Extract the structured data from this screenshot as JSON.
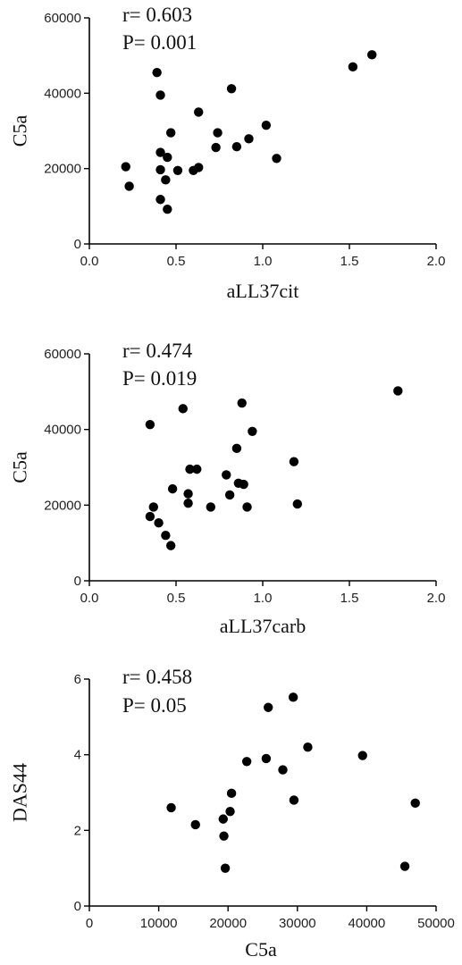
{
  "chart_data": [
    {
      "type": "scatter",
      "xlabel": "aLL37cit",
      "ylabel": "C5a",
      "xlim": [
        0,
        2
      ],
      "ylim": [
        0,
        60000
      ],
      "xticks": [
        "0.0",
        "0.5",
        "1.0",
        "1.5",
        "2.0"
      ],
      "yticks": [
        "0",
        "20000",
        "40000",
        "60000"
      ],
      "annotations": [
        "r= 0.603",
        "P= 0.001"
      ],
      "grid": false,
      "points": [
        {
          "x": 0.21,
          "y": 20500
        },
        {
          "x": 0.23,
          "y": 15300
        },
        {
          "x": 0.39,
          "y": 45500
        },
        {
          "x": 0.41,
          "y": 39500
        },
        {
          "x": 0.41,
          "y": 24300
        },
        {
          "x": 0.41,
          "y": 19700
        },
        {
          "x": 0.41,
          "y": 11800
        },
        {
          "x": 0.44,
          "y": 17000
        },
        {
          "x": 0.45,
          "y": 23000
        },
        {
          "x": 0.45,
          "y": 9200
        },
        {
          "x": 0.47,
          "y": 29500
        },
        {
          "x": 0.51,
          "y": 19500
        },
        {
          "x": 0.6,
          "y": 19500
        },
        {
          "x": 0.63,
          "y": 20300
        },
        {
          "x": 0.63,
          "y": 35000
        },
        {
          "x": 0.73,
          "y": 25600
        },
        {
          "x": 0.74,
          "y": 29500
        },
        {
          "x": 0.82,
          "y": 41200
        },
        {
          "x": 0.85,
          "y": 25800
        },
        {
          "x": 0.92,
          "y": 27900
        },
        {
          "x": 1.02,
          "y": 31500
        },
        {
          "x": 1.08,
          "y": 22700
        },
        {
          "x": 1.52,
          "y": 47000
        },
        {
          "x": 1.63,
          "y": 50200
        }
      ]
    },
    {
      "type": "scatter",
      "xlabel": "aLL37carb",
      "ylabel": "C5a",
      "xlim": [
        0,
        2
      ],
      "ylim": [
        0,
        60000
      ],
      "xticks": [
        "0.0",
        "0.5",
        "1.0",
        "1.5",
        "2.0"
      ],
      "yticks": [
        "0",
        "20000",
        "40000",
        "60000"
      ],
      "annotations": [
        "r= 0.474",
        "P= 0.019"
      ],
      "grid": false,
      "points": [
        {
          "x": 0.35,
          "y": 41300
        },
        {
          "x": 0.35,
          "y": 17000
        },
        {
          "x": 0.37,
          "y": 19500
        },
        {
          "x": 0.4,
          "y": 15300
        },
        {
          "x": 0.44,
          "y": 12000
        },
        {
          "x": 0.47,
          "y": 9300
        },
        {
          "x": 0.48,
          "y": 24300
        },
        {
          "x": 0.54,
          "y": 45500
        },
        {
          "x": 0.57,
          "y": 23000
        },
        {
          "x": 0.57,
          "y": 20500
        },
        {
          "x": 0.58,
          "y": 29500
        },
        {
          "x": 0.62,
          "y": 29500
        },
        {
          "x": 0.7,
          "y": 19500
        },
        {
          "x": 0.79,
          "y": 28000
        },
        {
          "x": 0.81,
          "y": 22700
        },
        {
          "x": 0.85,
          "y": 35000
        },
        {
          "x": 0.86,
          "y": 25800
        },
        {
          "x": 0.88,
          "y": 47000
        },
        {
          "x": 0.89,
          "y": 25500
        },
        {
          "x": 0.91,
          "y": 19500
        },
        {
          "x": 0.94,
          "y": 39500
        },
        {
          "x": 1.18,
          "y": 31500
        },
        {
          "x": 1.2,
          "y": 20300
        },
        {
          "x": 1.78,
          "y": 50200
        }
      ]
    },
    {
      "type": "scatter",
      "xlabel": "C5a",
      "ylabel": "DAS44",
      "xlim": [
        0,
        50000
      ],
      "ylim": [
        0,
        6
      ],
      "xticks": [
        "0",
        "10000",
        "20000",
        "30000",
        "40000",
        "50000"
      ],
      "yticks": [
        "0",
        "2",
        "4",
        "6"
      ],
      "annotations": [
        "r= 0.458",
        "P= 0.05"
      ],
      "grid": false,
      "points": [
        {
          "x": 11800,
          "y": 2.6
        },
        {
          "x": 15300,
          "y": 2.15
        },
        {
          "x": 19300,
          "y": 2.3
        },
        {
          "x": 19400,
          "y": 1.85
        },
        {
          "x": 19600,
          "y": 1.0
        },
        {
          "x": 20300,
          "y": 2.5
        },
        {
          "x": 20500,
          "y": 2.98
        },
        {
          "x": 22700,
          "y": 3.82
        },
        {
          "x": 25500,
          "y": 3.9
        },
        {
          "x": 25800,
          "y": 5.25
        },
        {
          "x": 27900,
          "y": 3.6
        },
        {
          "x": 29400,
          "y": 5.52
        },
        {
          "x": 29500,
          "y": 2.8
        },
        {
          "x": 31500,
          "y": 4.2
        },
        {
          "x": 39400,
          "y": 3.98
        },
        {
          "x": 45500,
          "y": 1.05
        },
        {
          "x": 47000,
          "y": 2.72
        }
      ]
    }
  ]
}
